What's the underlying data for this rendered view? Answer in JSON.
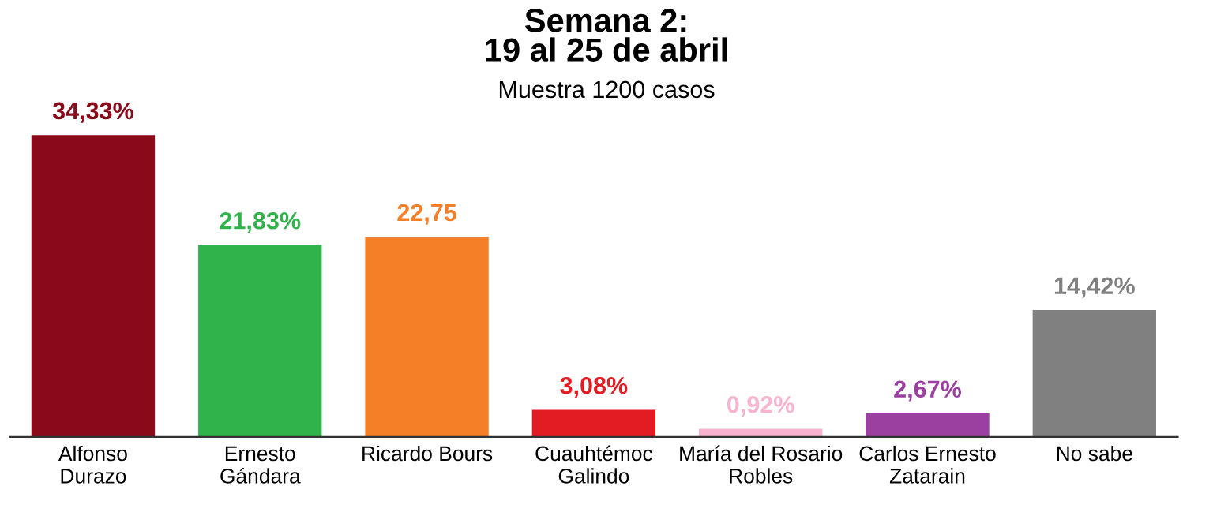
{
  "chart_data": {
    "type": "bar",
    "title": "Semana 2:\n19 al 25 de abril",
    "subtitle": "Muestra 1200 casos",
    "categories": [
      "Alfonso\nDurazo",
      "Ernesto\nGándara",
      "Ricardo Bours",
      "Cuauhtémoc\nGalindo",
      "María del Rosario\nRobles",
      "Carlos Ernesto\nZatarain",
      "No sabe"
    ],
    "values": [
      34.33,
      21.83,
      22.75,
      3.08,
      0.92,
      2.67,
      14.42
    ],
    "colors": [
      "#8b0a1a",
      "#2fb34a",
      "#f47f26",
      "#e31b23",
      "#f7b3cf",
      "#9b3fa0",
      "#808080"
    ],
    "value_labels": [
      "34,33%",
      "21,83%",
      "22,75",
      "3,08%",
      "0,92%",
      "2,67%",
      "14,42%"
    ],
    "grid": false,
    "legend": false
  }
}
